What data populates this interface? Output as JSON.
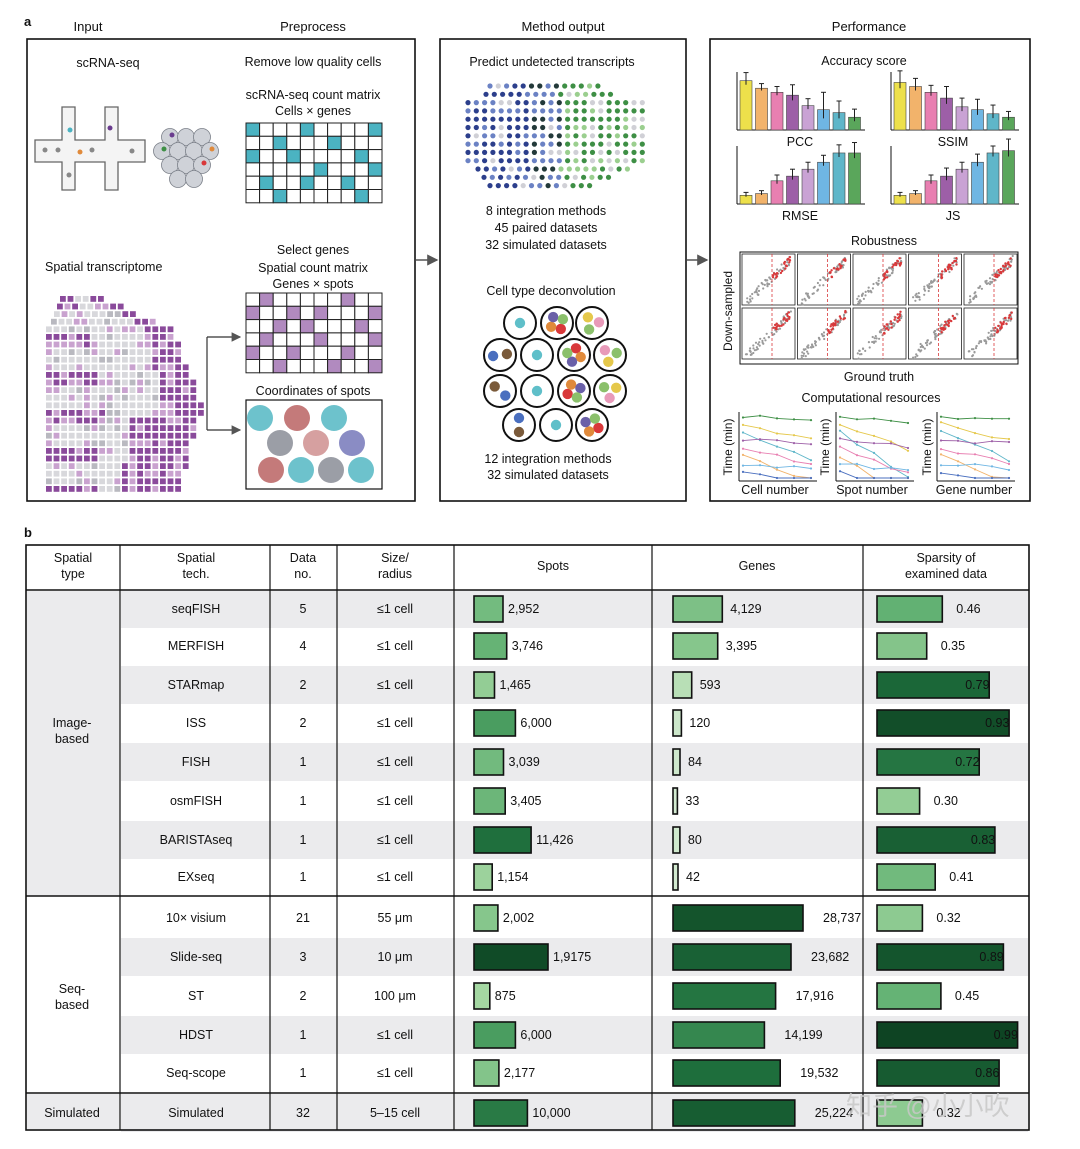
{
  "panel_a": {
    "label": "a",
    "headers": {
      "input": "Input",
      "preprocess": "Preprocess",
      "method": "Method output",
      "performance": "Performance"
    },
    "input": {
      "scrna_title": "scRNA-seq",
      "spatial_title": "Spatial transcriptome",
      "remove_low_quality": "Remove low quality cells",
      "scrna_matrix_title": "scRNA-seq count matrix",
      "scrna_matrix_sub": "Cells × genes",
      "select_genes": "Select genes",
      "spatial_matrix_title": "Spatial count matrix",
      "spatial_matrix_sub": "Genes × spots",
      "coords_title": "Coordinates of spots"
    },
    "method": {
      "predict_title": "Predict undetected transcripts",
      "predict_lines": [
        "8 integration methods",
        "45 paired datasets",
        "32 simulated datasets"
      ],
      "deconv_title": "Cell type deconvolution",
      "deconv_lines": [
        "12 integration methods",
        "32 simulated datasets"
      ]
    },
    "performance": {
      "accuracy_title": "Accuracy score",
      "metrics": [
        "PCC",
        "SSIM",
        "RMSE",
        "JS"
      ],
      "robustness_title": "Robustness",
      "robust_ylabel": "Down-sampled",
      "robust_xlabel": "Ground truth",
      "compute_title": "Computational resources",
      "compute_ylabel": "Time (min)",
      "compute_xlabels": [
        "Cell number",
        "Spot number",
        "Gene number"
      ]
    },
    "colors": {
      "teal": "#4bb3c2",
      "purple": "#8a4a9b",
      "lightpurple": "#c9a2cf",
      "navy": "#2c3f8c",
      "green": "#3e8f45",
      "red": "#d9383a"
    },
    "bar_colors": [
      "#ede04b",
      "#f2b36b",
      "#e87fb1",
      "#9d5fa7",
      "#c9a2d4",
      "#6fb6e3",
      "#5fb6c9",
      "#5aa65b"
    ]
  },
  "panel_b": {
    "label": "b",
    "headers": {
      "spatial_type": [
        "Spatial",
        "type"
      ],
      "spatial_tech": [
        "Spatial",
        "tech."
      ],
      "data_no": [
        "Data",
        "no."
      ],
      "size": [
        "Size/",
        "radius"
      ],
      "spots": "Spots",
      "genes": "Genes",
      "sparsity": [
        "Sparsity of",
        "examined data"
      ]
    },
    "groups": [
      {
        "label": [
          "Image-",
          "based"
        ]
      },
      {
        "label": [
          "Seq-",
          "based"
        ]
      },
      {
        "label": [
          "Simulated"
        ]
      }
    ],
    "rows": [
      {
        "tech": "seqFISH",
        "data_no": "5",
        "size": "≤1 cell",
        "spots": "2,952",
        "genes": "4,129",
        "sparsity": "0.46"
      },
      {
        "tech": "MERFISH",
        "data_no": "4",
        "size": "≤1 cell",
        "spots": "3,746",
        "genes": "3,395",
        "sparsity": "0.35"
      },
      {
        "tech": "STARmap",
        "data_no": "2",
        "size": "≤1 cell",
        "spots": "1,465",
        "genes": "593",
        "sparsity": "0.79"
      },
      {
        "tech": "ISS",
        "data_no": "2",
        "size": "≤1 cell",
        "spots": "6,000",
        "genes": "120",
        "sparsity": "0.93"
      },
      {
        "tech": "FISH",
        "data_no": "1",
        "size": "≤1 cell",
        "spots": "3,039",
        "genes": "84",
        "sparsity": "0.72"
      },
      {
        "tech": "osmFISH",
        "data_no": "1",
        "size": "≤1 cell",
        "spots": "3,405",
        "genes": "33",
        "sparsity": "0.30"
      },
      {
        "tech": "BARISTAseq",
        "data_no": "1",
        "size": "≤1 cell",
        "spots": "11,426",
        "genes": "80",
        "sparsity": "0.83"
      },
      {
        "tech": "EXseq",
        "data_no": "1",
        "size": "≤1 cell",
        "spots": "1,154",
        "genes": "42",
        "sparsity": "0.41"
      },
      {
        "tech": "10× visium",
        "data_no": "21",
        "size": "55 μm",
        "spots": "2,002",
        "genes": "28,737",
        "sparsity": "0.32"
      },
      {
        "tech": "Slide-seq",
        "data_no": "3",
        "size": "10 μm",
        "spots": "1,9175",
        "genes": "23,682",
        "sparsity": "0.89"
      },
      {
        "tech": "ST",
        "data_no": "2",
        "size": "100 μm",
        "spots": "875",
        "genes": "17,916",
        "sparsity": "0.45"
      },
      {
        "tech": "HDST",
        "data_no": "1",
        "size": "≤1 cell",
        "spots": "6,000",
        "genes": "14,199",
        "sparsity": "0.99"
      },
      {
        "tech": "Seq-scope",
        "data_no": "1",
        "size": "≤1 cell",
        "spots": "2,177",
        "genes": "19,532",
        "sparsity": "0.86"
      },
      {
        "tech": "Simulated",
        "data_no": "32",
        "size": "5–15 cell",
        "spots": "10,000",
        "genes": "25,224",
        "sparsity": "0.32"
      }
    ]
  },
  "watermark": "知乎 @小小吹"
}
